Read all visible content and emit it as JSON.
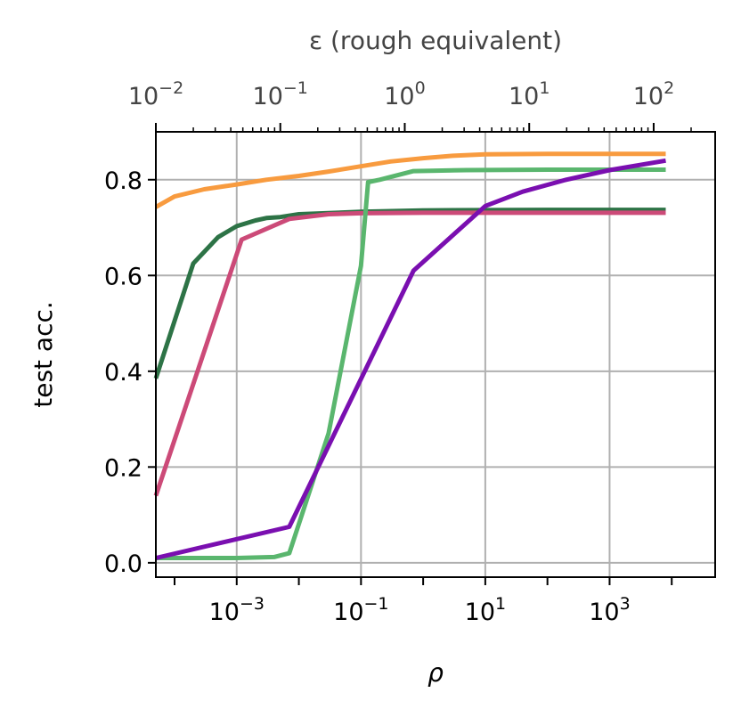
{
  "chart_data": {
    "type": "line",
    "xlabel": "ρ",
    "ylabel": "test acc.",
    "top_xlabel": "ε (rough equivalent)",
    "xscale": "log",
    "xlim": [
      5e-05,
      50000
    ],
    "ylim": [
      -0.03,
      0.9
    ],
    "grid": true,
    "x_ticks": [
      {
        "value": 0.001,
        "base": "10",
        "exp": "−3"
      },
      {
        "value": 0.1,
        "base": "10",
        "exp": "−1"
      },
      {
        "value": 10,
        "base": "10",
        "exp": "1"
      },
      {
        "value": 1000,
        "base": "10",
        "exp": "3"
      }
    ],
    "y_ticks": [
      {
        "value": 0.0,
        "label": "0.0"
      },
      {
        "value": 0.2,
        "label": "0.2"
      },
      {
        "value": 0.4,
        "label": "0.4"
      },
      {
        "value": 0.6,
        "label": "0.6"
      },
      {
        "value": 0.8,
        "label": "0.8"
      }
    ],
    "top_axis": {
      "xscale": "log",
      "xlim": [
        0.01,
        200
      ],
      "ticks": [
        {
          "value": 0.01,
          "base": "10",
          "exp": "−2"
        },
        {
          "value": 0.1,
          "base": "10",
          "exp": "−1"
        },
        {
          "value": 1,
          "base": "10",
          "exp": "0"
        },
        {
          "value": 10,
          "base": "10",
          "exp": "1"
        },
        {
          "value": 100,
          "base": "10",
          "exp": "2"
        }
      ]
    },
    "series": [
      {
        "color": "#f89b3f",
        "points": [
          [
            5e-05,
            0.743
          ],
          [
            0.0001,
            0.765
          ],
          [
            0.0003,
            0.78
          ],
          [
            0.001,
            0.79
          ],
          [
            0.003,
            0.8
          ],
          [
            0.01,
            0.808
          ],
          [
            0.03,
            0.817
          ],
          [
            0.1,
            0.828
          ],
          [
            0.3,
            0.838
          ],
          [
            1,
            0.845
          ],
          [
            3,
            0.85
          ],
          [
            10,
            0.853
          ],
          [
            100,
            0.854
          ],
          [
            1000,
            0.854
          ],
          [
            8000,
            0.854
          ]
        ]
      },
      {
        "color": "#2d7346",
        "points": [
          [
            5e-05,
            0.385
          ],
          [
            0.0002,
            0.625
          ],
          [
            0.0005,
            0.68
          ],
          [
            0.001,
            0.703
          ],
          [
            0.002,
            0.715
          ],
          [
            0.003,
            0.72
          ],
          [
            0.005,
            0.722
          ],
          [
            0.01,
            0.728
          ],
          [
            0.1,
            0.733
          ],
          [
            1,
            0.736
          ],
          [
            100,
            0.737
          ],
          [
            8000,
            0.737
          ]
        ]
      },
      {
        "color": "#cc4a78",
        "points": [
          [
            5e-05,
            0.14
          ],
          [
            0.0012,
            0.675
          ],
          [
            0.007,
            0.718
          ],
          [
            0.03,
            0.728
          ],
          [
            0.1,
            0.73
          ],
          [
            1,
            0.731
          ],
          [
            100,
            0.731
          ],
          [
            8000,
            0.731
          ]
        ]
      },
      {
        "color": "#5ab66e",
        "points": [
          [
            5e-05,
            0.01
          ],
          [
            0.001,
            0.01
          ],
          [
            0.004,
            0.012
          ],
          [
            0.007,
            0.02
          ],
          [
            0.03,
            0.27
          ],
          [
            0.1,
            0.62
          ],
          [
            0.13,
            0.795
          ],
          [
            0.2,
            0.8
          ],
          [
            0.7,
            0.818
          ],
          [
            5,
            0.82
          ],
          [
            100,
            0.821
          ],
          [
            8000,
            0.821
          ]
        ]
      },
      {
        "color": "#7a0fb0",
        "points": [
          [
            5e-05,
            0.01
          ],
          [
            0.007,
            0.075
          ],
          [
            0.7,
            0.61
          ],
          [
            10,
            0.745
          ],
          [
            40,
            0.775
          ],
          [
            200,
            0.8
          ],
          [
            1000,
            0.82
          ],
          [
            8000,
            0.84
          ]
        ]
      }
    ]
  }
}
